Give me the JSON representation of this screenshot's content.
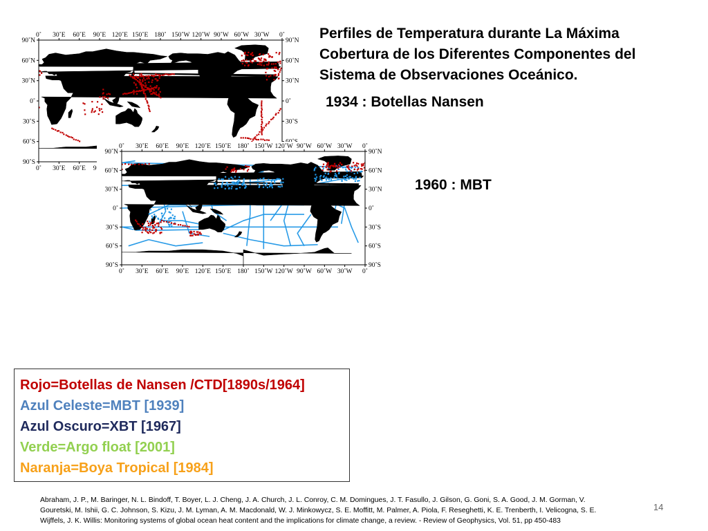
{
  "title_lines": [
    "Perfiles de Temperatura durante La Máxima",
    "Cobertura  de los Diferentes Componentes del",
    "Sistema de Observaciones Oceánico."
  ],
  "map_1934_label": "1934 : Botellas Nansen",
  "map_1960_label": "1960 : MBT",
  "axes": {
    "lon_ticks": [
      "0˚",
      "30˚E",
      "60˚E",
      "90˚E",
      "120˚E",
      "150˚E",
      "180˚",
      "150˚W",
      "120˚W",
      "90˚W",
      "60˚W",
      "30˚W",
      "0˚"
    ],
    "lat_ticks_left": [
      "90˚N",
      "60˚N",
      "30˚N",
      "0˚",
      "30˚S",
      "60˚S",
      "90˚S"
    ],
    "lat_ticks_right": [
      "90˚N",
      "60˚N",
      "30˚N",
      "0˚",
      "30˚S",
      "60˚S",
      "90˚S"
    ]
  },
  "legend": [
    {
      "text": "Rojo=Botellas de Nansen /CTD[1890s/1964]",
      "color": "#c00000"
    },
    {
      "text": "Azul Celeste=MBT [1939]",
      "color": "#4f81bd"
    },
    {
      "text": "Azul Oscuro=XBT [1967]",
      "color": "#1f2a5c"
    },
    {
      "text": "Verde=Argo float [2001]",
      "color": "#92d050"
    },
    {
      "text": "Naranja=Boya Tropical [1984]",
      "color": "#f7a11a"
    }
  ],
  "colors": {
    "land": "#000000",
    "nansen": "#c00000",
    "mbt": "#1e96e6"
  },
  "reference_lines": [
    "Abraham, J. P., M. Baringer, N. L. Bindoff, T. Boyer, L. J. Cheng, J. A. Church, J. L. Conroy, C. M. Domingues, J. T. Fasullo, J. Gilson, G. Goni, S. A. Good, J. M. Gorman, V.",
    "Gouretski, M. Ishii, G. C. Johnson, S. Kizu, J. M. Lyman, A. M. Macdonald, W. J. Minkowycz, S. E. Moffitt, M. Palmer, A. Piola, F. Reseghetti, K. E. Trenberth, I. Velicogna, S. E.",
    "Wijffels, J. K. Willis: Monitoring systems of global ocean heat content and the implications for climate change, a review. - Review of Geophysics, Vol. 51, pp 450-483"
  ],
  "page_number": "14"
}
